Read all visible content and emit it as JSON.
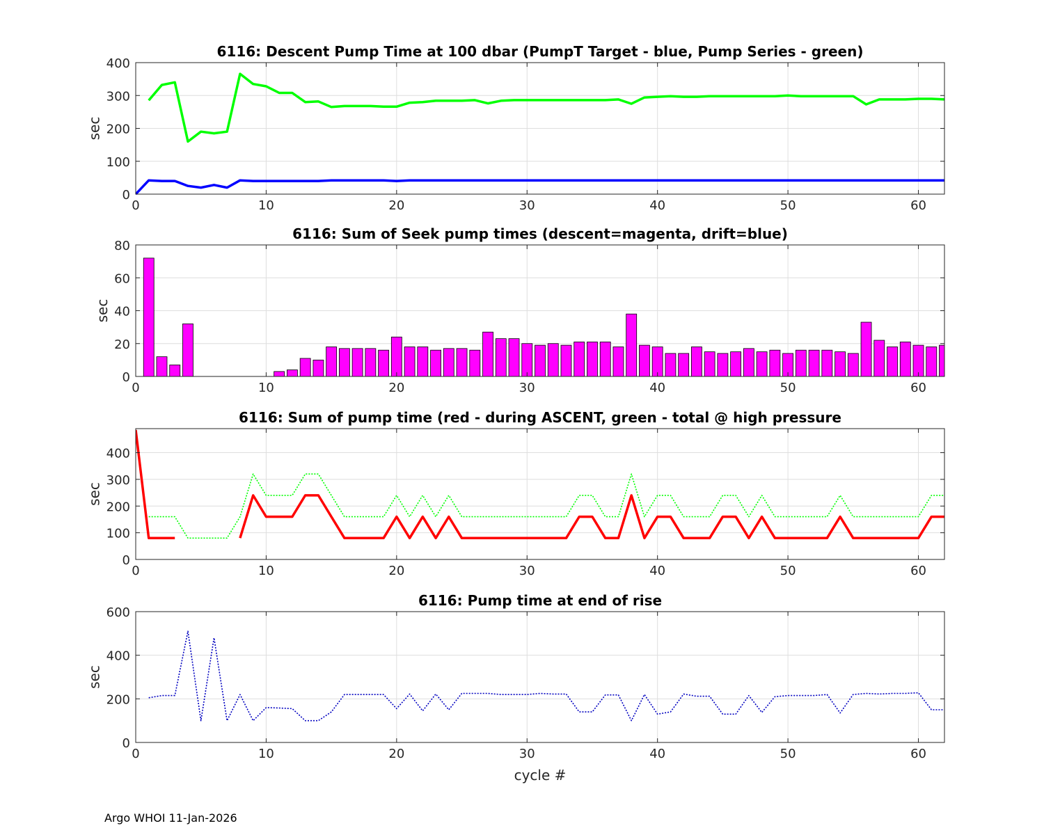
{
  "footer": "Argo WHOI 11-Jan-2026",
  "chart_data": [
    {
      "type": "line",
      "title": "6116: Descent Pump Time at 100 dbar (PumpT Target - blue, Pump Series - green)",
      "xlabel": "",
      "ylabel": "sec",
      "xlim": [
        0,
        62
      ],
      "ylim": [
        0,
        400
      ],
      "xticks": [
        0,
        10,
        20,
        30,
        40,
        50,
        60
      ],
      "yticks": [
        0,
        100,
        200,
        300,
        400
      ],
      "grid": true,
      "series": [
        {
          "name": "Pump Series",
          "color": "#00ff00",
          "style": "solid-thick",
          "x": [
            1,
            2,
            3,
            4,
            5,
            6,
            7,
            8,
            9,
            10,
            11,
            12,
            13,
            14,
            15,
            16,
            17,
            18,
            19,
            20,
            21,
            22,
            23,
            24,
            25,
            26,
            27,
            28,
            29,
            30,
            31,
            32,
            33,
            34,
            35,
            36,
            37,
            38,
            39,
            40,
            41,
            42,
            43,
            44,
            45,
            46,
            47,
            48,
            49,
            50,
            51,
            52,
            53,
            54,
            55,
            56,
            57,
            58,
            59,
            60,
            61,
            62
          ],
          "y": [
            285,
            332,
            340,
            160,
            190,
            185,
            190,
            366,
            335,
            328,
            308,
            308,
            280,
            282,
            265,
            268,
            268,
            268,
            266,
            266,
            278,
            280,
            284,
            284,
            284,
            286,
            276,
            284,
            286,
            286,
            286,
            286,
            286,
            286,
            286,
            286,
            288,
            275,
            294,
            296,
            298,
            296,
            296,
            298,
            298,
            298,
            298,
            298,
            298,
            300,
            298,
            298,
            298,
            298,
            298,
            273,
            288,
            288,
            288,
            290,
            290,
            288
          ]
        },
        {
          "name": "PumpT Target",
          "color": "#0000ff",
          "style": "solid-thick",
          "x": [
            0,
            1,
            2,
            3,
            4,
            5,
            6,
            7,
            8,
            9,
            10,
            11,
            12,
            13,
            14,
            15,
            16,
            17,
            18,
            19,
            20,
            21,
            22,
            23,
            24,
            25,
            26,
            27,
            28,
            29,
            30,
            31,
            32,
            33,
            34,
            35,
            36,
            37,
            38,
            39,
            40,
            41,
            42,
            43,
            44,
            45,
            46,
            47,
            48,
            49,
            50,
            51,
            52,
            53,
            54,
            55,
            56,
            57,
            58,
            59,
            60,
            61,
            62
          ],
          "y": [
            0,
            42,
            40,
            40,
            25,
            20,
            28,
            20,
            42,
            40,
            40,
            40,
            40,
            40,
            40,
            42,
            42,
            42,
            42,
            42,
            40,
            42,
            42,
            42,
            42,
            42,
            42,
            42,
            42,
            42,
            42,
            42,
            42,
            42,
            42,
            42,
            42,
            42,
            42,
            42,
            42,
            42,
            42,
            42,
            42,
            42,
            42,
            42,
            42,
            42,
            42,
            42,
            42,
            42,
            42,
            42,
            42,
            42,
            42,
            42,
            42,
            42,
            42
          ]
        }
      ]
    },
    {
      "type": "bar",
      "title": "6116: Sum of Seek pump times (descent=magenta, drift=blue)",
      "xlabel": "",
      "ylabel": "sec",
      "xlim": [
        0,
        62
      ],
      "ylim": [
        0,
        80
      ],
      "xticks": [
        0,
        10,
        20,
        30,
        40,
        50,
        60
      ],
      "yticks": [
        0,
        20,
        40,
        60,
        80
      ],
      "grid": true,
      "series": [
        {
          "name": "descent",
          "color": "#ff00ff",
          "x": [
            1,
            2,
            3,
            4,
            5,
            6,
            7,
            8,
            9,
            10,
            11,
            12,
            13,
            14,
            15,
            16,
            17,
            18,
            19,
            20,
            21,
            22,
            23,
            24,
            25,
            26,
            27,
            28,
            29,
            30,
            31,
            32,
            33,
            34,
            35,
            36,
            37,
            38,
            39,
            40,
            41,
            42,
            43,
            44,
            45,
            46,
            47,
            48,
            49,
            50,
            51,
            52,
            53,
            54,
            55,
            56,
            57,
            58,
            59,
            60,
            61,
            62
          ],
          "y": [
            72,
            12,
            7,
            32,
            0,
            0,
            0,
            0,
            0,
            0,
            3,
            4,
            11,
            10,
            18,
            17,
            17,
            17,
            16,
            24,
            18,
            18,
            16,
            17,
            17,
            16,
            27,
            23,
            23,
            20,
            19,
            20,
            19,
            21,
            21,
            21,
            18,
            38,
            19,
            18,
            14,
            14,
            18,
            15,
            14,
            15,
            17,
            15,
            16,
            14,
            16,
            16,
            16,
            15,
            14,
            33,
            22,
            18,
            21,
            19,
            18,
            19
          ]
        }
      ]
    },
    {
      "type": "line",
      "title": "6116: Sum of pump time (red - during ASCENT, green - total @ high pressure",
      "xlabel": "",
      "ylabel": "sec",
      "xlim": [
        0,
        62
      ],
      "ylim": [
        0,
        490
      ],
      "xticks": [
        0,
        10,
        20,
        30,
        40,
        50,
        60
      ],
      "yticks": [
        0,
        100,
        200,
        300,
        400
      ],
      "grid": true,
      "series": [
        {
          "name": "total @ high pressure",
          "color": "#00ff00",
          "style": "dotted",
          "x": [
            1,
            2,
            3,
            4,
            5,
            6,
            7,
            8,
            9,
            10,
            11,
            12,
            13,
            14,
            15,
            16,
            17,
            18,
            19,
            20,
            21,
            22,
            23,
            24,
            25,
            26,
            27,
            28,
            29,
            30,
            31,
            32,
            33,
            34,
            35,
            36,
            37,
            38,
            39,
            40,
            41,
            42,
            43,
            44,
            45,
            46,
            47,
            48,
            49,
            50,
            51,
            52,
            53,
            54,
            55,
            56,
            57,
            58,
            59,
            60,
            61,
            62
          ],
          "y": [
            160,
            160,
            160,
            80,
            80,
            80,
            80,
            160,
            320,
            240,
            240,
            240,
            320,
            320,
            240,
            160,
            160,
            160,
            160,
            240,
            160,
            240,
            160,
            240,
            160,
            160,
            160,
            160,
            160,
            160,
            160,
            160,
            160,
            240,
            240,
            160,
            160,
            320,
            160,
            240,
            240,
            160,
            160,
            160,
            240,
            240,
            160,
            240,
            160,
            160,
            160,
            160,
            160,
            240,
            160,
            160,
            160,
            160,
            160,
            160,
            240,
            240
          ]
        },
        {
          "name": "during ASCENT",
          "color": "#ff0000",
          "style": "solid-thick",
          "x": [
            0,
            1,
            2,
            3,
            null,
            8,
            9,
            10,
            11,
            12,
            13,
            14,
            15,
            16,
            17,
            18,
            19,
            20,
            21,
            22,
            23,
            24,
            25,
            26,
            27,
            28,
            29,
            30,
            31,
            32,
            33,
            34,
            35,
            36,
            37,
            38,
            39,
            40,
            41,
            42,
            43,
            44,
            45,
            46,
            47,
            48,
            49,
            50,
            51,
            52,
            53,
            54,
            55,
            56,
            57,
            58,
            59,
            60,
            61,
            62
          ],
          "y": [
            485,
            80,
            80,
            80,
            null,
            80,
            240,
            160,
            160,
            160,
            240,
            240,
            160,
            80,
            80,
            80,
            80,
            160,
            80,
            160,
            80,
            160,
            80,
            80,
            80,
            80,
            80,
            80,
            80,
            80,
            80,
            160,
            160,
            80,
            80,
            240,
            80,
            160,
            160,
            80,
            80,
            80,
            160,
            160,
            80,
            160,
            80,
            80,
            80,
            80,
            80,
            160,
            80,
            80,
            80,
            80,
            80,
            80,
            160,
            160
          ]
        }
      ]
    },
    {
      "type": "line",
      "title": "6116: Pump time at end of rise",
      "xlabel": "cycle #",
      "ylabel": "sec",
      "xlim": [
        0,
        62
      ],
      "ylim": [
        0,
        600
      ],
      "xticks": [
        0,
        10,
        20,
        30,
        40,
        50,
        60
      ],
      "yticks": [
        0,
        200,
        400,
        600
      ],
      "grid": true,
      "series": [
        {
          "name": "end of rise",
          "color": "#0000c0",
          "style": "dotted",
          "x": [
            1,
            2,
            3,
            4,
            5,
            6,
            7,
            8,
            9,
            10,
            11,
            12,
            13,
            14,
            15,
            16,
            17,
            18,
            19,
            20,
            21,
            22,
            23,
            24,
            25,
            26,
            27,
            28,
            29,
            30,
            31,
            32,
            33,
            34,
            35,
            36,
            37,
            38,
            39,
            40,
            41,
            42,
            43,
            44,
            45,
            46,
            47,
            48,
            49,
            50,
            51,
            52,
            53,
            54,
            55,
            56,
            57,
            58,
            59,
            60,
            61,
            62
          ],
          "y": [
            205,
            215,
            215,
            510,
            100,
            480,
            100,
            220,
            100,
            160,
            158,
            155,
            100,
            100,
            140,
            220,
            220,
            220,
            220,
            155,
            222,
            145,
            222,
            150,
            225,
            225,
            225,
            220,
            220,
            220,
            225,
            222,
            222,
            140,
            140,
            218,
            218,
            100,
            220,
            130,
            140,
            222,
            212,
            212,
            130,
            130,
            215,
            138,
            210,
            215,
            215,
            215,
            220,
            135,
            220,
            225,
            222,
            225,
            225,
            228,
            150,
            150
          ]
        }
      ]
    }
  ]
}
